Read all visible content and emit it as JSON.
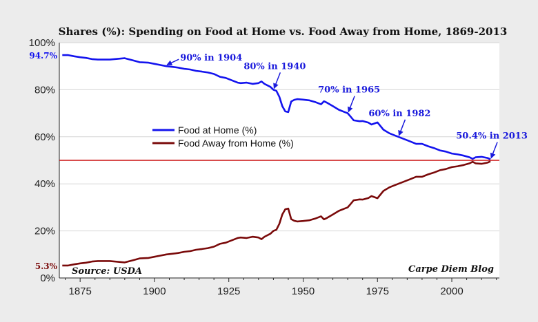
{
  "chart_data": {
    "type": "line",
    "title": "Shares (%): Spending on Food at Home vs. Food Away from Home, 1869-2013",
    "xlabel": "",
    "ylabel": "",
    "xlim": [
      1868,
      2016
    ],
    "ylim": [
      0,
      100
    ],
    "x_ticks": [
      1875,
      1900,
      1925,
      1950,
      1975,
      2000
    ],
    "y_ticks": [
      0,
      20,
      40,
      60,
      80,
      100
    ],
    "y_tick_labels": [
      "0%",
      "20%",
      "40%",
      "60%",
      "80%",
      "100%"
    ],
    "grid": "horizontal",
    "legend_position": "center-left",
    "series": [
      {
        "name": "Food at Home (%)",
        "color": "#1414ee",
        "x": [
          1869,
          1871,
          1873,
          1875,
          1877,
          1879,
          1881,
          1885,
          1890,
          1893,
          1895,
          1898,
          1900,
          1902,
          1904,
          1906,
          1908,
          1910,
          1912,
          1914,
          1916,
          1918,
          1920,
          1922,
          1924,
          1926,
          1928,
          1929,
          1931,
          1933,
          1935,
          1936,
          1937,
          1939,
          1940,
          1941,
          1942,
          1943,
          1944,
          1945,
          1946,
          1947,
          1948,
          1950,
          1952,
          1954,
          1956,
          1957,
          1958,
          1960,
          1962,
          1964,
          1965,
          1966,
          1967,
          1969,
          1970,
          1972,
          1973,
          1975,
          1977,
          1979,
          1980,
          1982,
          1984,
          1986,
          1988,
          1990,
          1992,
          1994,
          1996,
          1998,
          2000,
          2002,
          2004,
          2006,
          2007,
          2008,
          2010,
          2012,
          2013
        ],
        "values": [
          94.7,
          94.7,
          94.2,
          93.8,
          93.5,
          93.0,
          92.8,
          92.8,
          93.4,
          92.4,
          91.7,
          91.5,
          91.0,
          90.5,
          90.0,
          89.7,
          89.4,
          88.9,
          88.6,
          88.0,
          87.7,
          87.3,
          86.7,
          85.5,
          85.0,
          84.0,
          83.0,
          82.8,
          83.0,
          82.5,
          82.8,
          83.5,
          82.5,
          81.2,
          80.0,
          79.5,
          77.0,
          73.0,
          70.8,
          70.5,
          75.0,
          75.7,
          76.0,
          75.8,
          75.5,
          74.8,
          73.8,
          75.1,
          74.5,
          73.0,
          71.5,
          70.5,
          70.0,
          68.5,
          67.0,
          66.6,
          66.7,
          66.0,
          65.2,
          66.1,
          63.0,
          61.5,
          61.0,
          60.0,
          59.0,
          58.0,
          57.0,
          57.0,
          56.0,
          55.2,
          54.2,
          53.7,
          52.9,
          52.5,
          52.0,
          51.3,
          50.6,
          51.3,
          51.5,
          51.0,
          50.4
        ]
      },
      {
        "name": "Food Away from Home (%)",
        "color": "#7a0a0a",
        "x": [
          1869,
          1871,
          1873,
          1875,
          1877,
          1879,
          1881,
          1885,
          1890,
          1893,
          1895,
          1898,
          1900,
          1902,
          1904,
          1906,
          1908,
          1910,
          1912,
          1914,
          1916,
          1918,
          1920,
          1922,
          1924,
          1926,
          1928,
          1929,
          1931,
          1933,
          1935,
          1936,
          1937,
          1939,
          1940,
          1941,
          1942,
          1943,
          1944,
          1945,
          1946,
          1947,
          1948,
          1950,
          1952,
          1954,
          1956,
          1957,
          1958,
          1960,
          1962,
          1964,
          1965,
          1966,
          1967,
          1969,
          1970,
          1972,
          1973,
          1975,
          1977,
          1979,
          1980,
          1982,
          1984,
          1986,
          1988,
          1990,
          1992,
          1994,
          1996,
          1998,
          2000,
          2002,
          2004,
          2006,
          2007,
          2008,
          2010,
          2012,
          2013
        ],
        "values": [
          5.3,
          5.3,
          5.8,
          6.2,
          6.5,
          7.0,
          7.2,
          7.2,
          6.6,
          7.6,
          8.3,
          8.5,
          9.0,
          9.5,
          10.0,
          10.3,
          10.6,
          11.1,
          11.4,
          12.0,
          12.3,
          12.7,
          13.3,
          14.5,
          15.0,
          16.0,
          17.0,
          17.2,
          17.0,
          17.5,
          17.2,
          16.5,
          17.5,
          18.8,
          20.0,
          20.5,
          23.0,
          27.0,
          29.2,
          29.5,
          25.0,
          24.3,
          24.0,
          24.2,
          24.5,
          25.2,
          26.2,
          24.9,
          25.5,
          27.0,
          28.5,
          29.5,
          30.0,
          31.5,
          33.0,
          33.4,
          33.3,
          34.0,
          34.8,
          33.9,
          37.0,
          38.5,
          39.0,
          40.0,
          41.0,
          42.0,
          43.0,
          43.0,
          44.0,
          44.8,
          45.8,
          46.3,
          47.1,
          47.5,
          48.0,
          48.7,
          49.4,
          48.7,
          48.5,
          49.0,
          49.6
        ]
      }
    ],
    "reference_line": {
      "y": 50,
      "color": "#cc1111"
    },
    "annotations": [
      {
        "text": "90% in 1904",
        "x": 1904,
        "y": 90,
        "side": "right"
      },
      {
        "text": "80% in 1940",
        "x": 1940,
        "y": 80,
        "side": "above"
      },
      {
        "text": "70% in 1965",
        "x": 1965,
        "y": 70,
        "side": "above"
      },
      {
        "text": "60% in 1982",
        "x": 1982,
        "y": 60,
        "side": "above"
      },
      {
        "text": "50.4% in 2013",
        "x": 2013,
        "y": 50.4,
        "side": "above"
      }
    ],
    "edge_labels": [
      {
        "text": "94.7%",
        "y": 94.7,
        "color": "#1414ee"
      },
      {
        "text": "5.3%",
        "y": 5.3,
        "color": "#7a0a0a"
      }
    ],
    "source": "Source: USDA",
    "credit": "Carpe Diem Blog"
  }
}
